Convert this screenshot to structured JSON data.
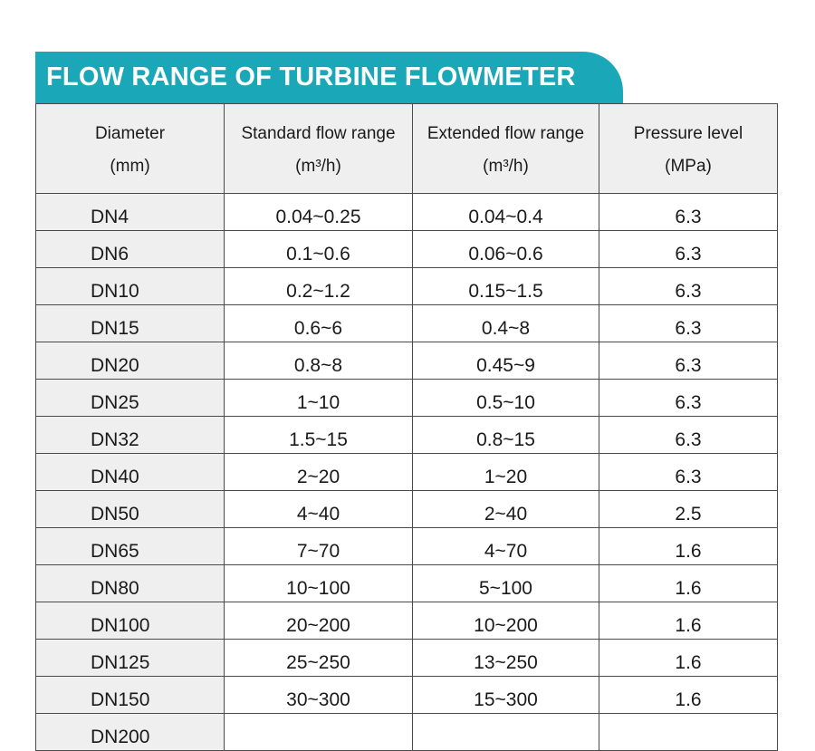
{
  "title": "FLOW RANGE OF TURBINE FLOWMETER",
  "columns": [
    {
      "line1": "Diameter",
      "line2": "(mm)"
    },
    {
      "line1": "Standard flow range",
      "line2": "(m³/h)"
    },
    {
      "line1": "Extended flow range",
      "line2": "(m³/h)"
    },
    {
      "line1": "Pressure level",
      "line2": "(MPa)"
    }
  ],
  "rows": [
    [
      "DN4",
      "0.04~0.25",
      "0.04~0.4",
      "6.3"
    ],
    [
      "DN6",
      "0.1~0.6",
      "0.06~0.6",
      "6.3"
    ],
    [
      "DN10",
      "0.2~1.2",
      "0.15~1.5",
      "6.3"
    ],
    [
      "DN15",
      "0.6~6",
      "0.4~8",
      "6.3"
    ],
    [
      "DN20",
      "0.8~8",
      "0.45~9",
      "6.3"
    ],
    [
      "DN25",
      "1~10",
      "0.5~10",
      "6.3"
    ],
    [
      "DN32",
      "1.5~15",
      "0.8~15",
      "6.3"
    ],
    [
      "DN40",
      "2~20",
      "1~20",
      "6.3"
    ],
    [
      "DN50",
      "4~40",
      "2~40",
      "2.5"
    ],
    [
      "DN65",
      "7~70",
      "4~70",
      "1.6"
    ],
    [
      "DN80",
      "10~100",
      "5~100",
      "1.6"
    ],
    [
      "DN100",
      "20~200",
      "10~200",
      "1.6"
    ],
    [
      "DN125",
      "25~250",
      "13~250",
      "1.6"
    ],
    [
      "DN150",
      "30~300",
      "15~300",
      "1.6"
    ],
    [
      "DN200",
      "",
      "",
      ""
    ]
  ],
  "colors": {
    "banner": "#1aa8b8",
    "header_bg": "#efefef",
    "border": "#4a4a4a"
  }
}
